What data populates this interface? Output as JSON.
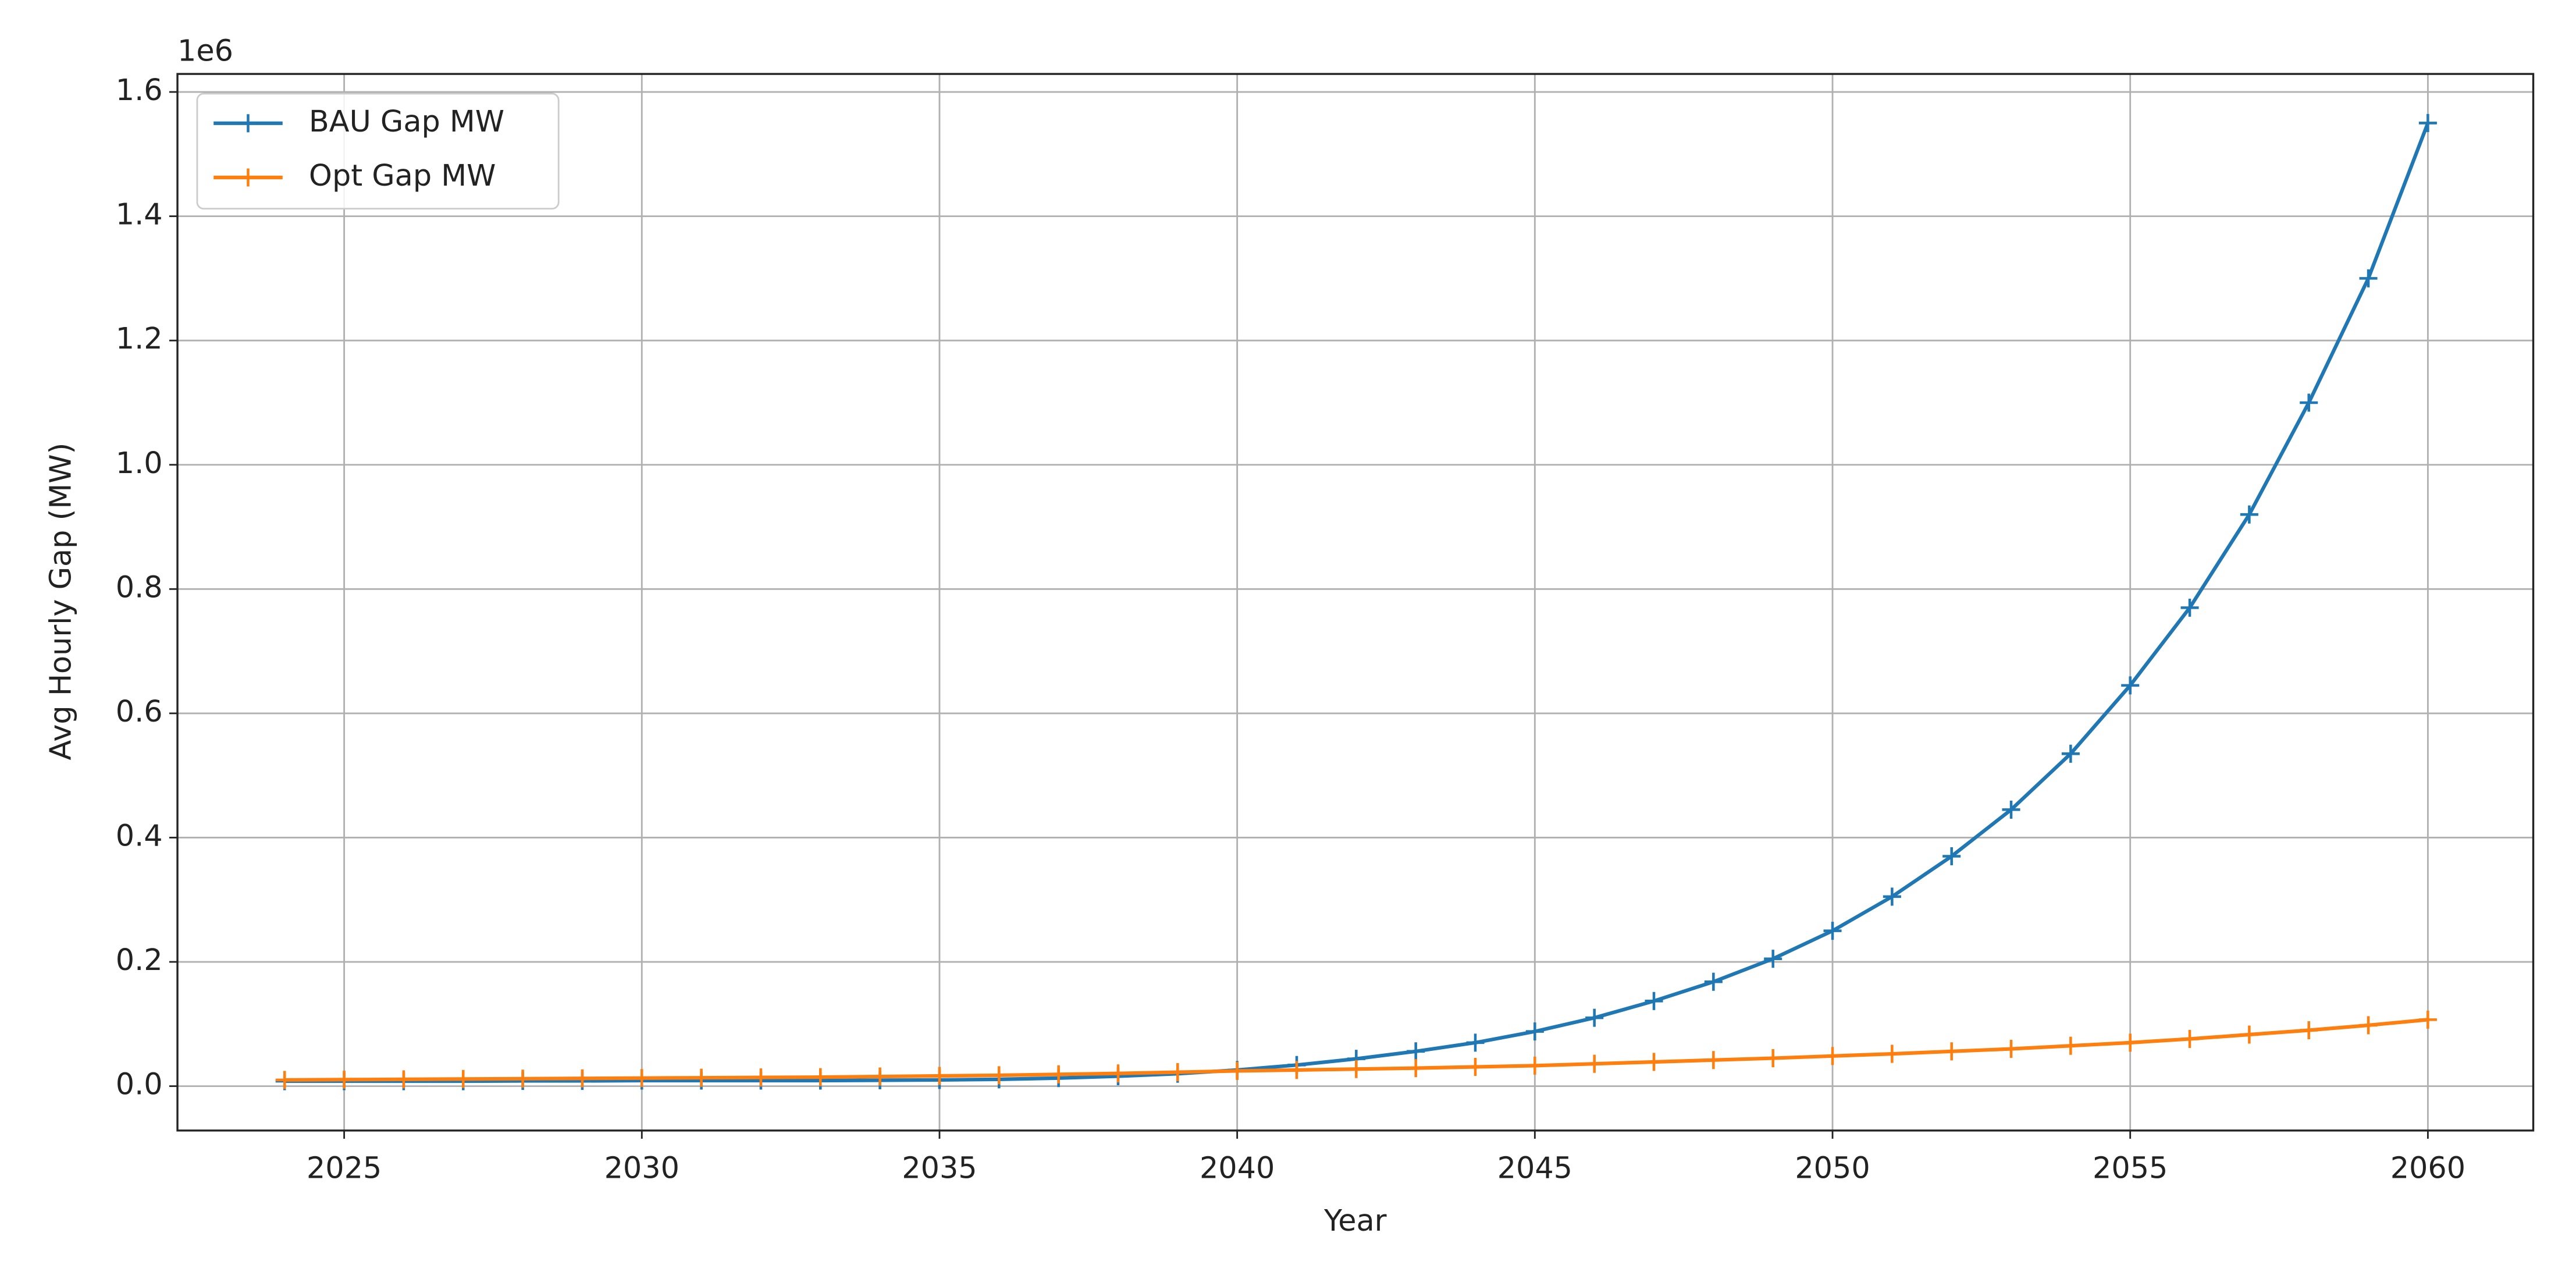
{
  "chart_data": {
    "type": "line",
    "x": [
      2024,
      2025,
      2026,
      2027,
      2028,
      2029,
      2030,
      2031,
      2032,
      2033,
      2034,
      2035,
      2036,
      2037,
      2038,
      2039,
      2040,
      2041,
      2042,
      2043,
      2044,
      2045,
      2046,
      2047,
      2048,
      2049,
      2050,
      2051,
      2052,
      2053,
      2054,
      2055,
      2056,
      2057,
      2058,
      2059,
      2060
    ],
    "series": [
      {
        "name": "BAU Gap MW",
        "color": "#1f77b4",
        "values": [
          8000,
          8000,
          8000,
          8000,
          8500,
          8500,
          9000,
          9000,
          9000,
          9000,
          9500,
          10000,
          11000,
          13000,
          16000,
          20000,
          26000,
          34000,
          44000,
          56000,
          70000,
          88000,
          110000,
          137000,
          168000,
          205000,
          250000,
          305000,
          370000,
          445000,
          535000,
          645000,
          770000,
          920000,
          1100000,
          1300000,
          1550000
        ]
      },
      {
        "name": "Opt Gap MW",
        "color": "#ff7f0e",
        "values": [
          10000,
          10500,
          11000,
          11500,
          12000,
          12500,
          13000,
          13500,
          14000,
          14500,
          15500,
          16500,
          17500,
          19000,
          20500,
          22500,
          24500,
          26000,
          27500,
          29000,
          31000,
          33000,
          36000,
          39000,
          42000,
          45000,
          48500,
          52000,
          56000,
          60000,
          65000,
          70000,
          76000,
          83000,
          90000,
          98000,
          107000
        ]
      }
    ],
    "xlabel": "Year",
    "ylabel": "Avg Hourly Gap (MW)",
    "y_offset_text": "1e6",
    "xlim": [
      2022.2,
      2061.77
    ],
    "xticks": [
      2025,
      2030,
      2035,
      2040,
      2045,
      2050,
      2055,
      2060
    ],
    "ylim": [
      -71400,
      1629000
    ],
    "yticks": [
      {
        "value": 0,
        "label": "0.0"
      },
      {
        "value": 200000,
        "label": "0.2"
      },
      {
        "value": 400000,
        "label": "0.4"
      },
      {
        "value": 600000,
        "label": "0.6"
      },
      {
        "value": 800000,
        "label": "0.8"
      },
      {
        "value": 1000000,
        "label": "1.0"
      },
      {
        "value": 1200000,
        "label": "1.2"
      },
      {
        "value": 1400000,
        "label": "1.4"
      },
      {
        "value": 1600000,
        "label": "1.6"
      }
    ],
    "grid": true,
    "legend": "upper left",
    "marker": "+"
  }
}
